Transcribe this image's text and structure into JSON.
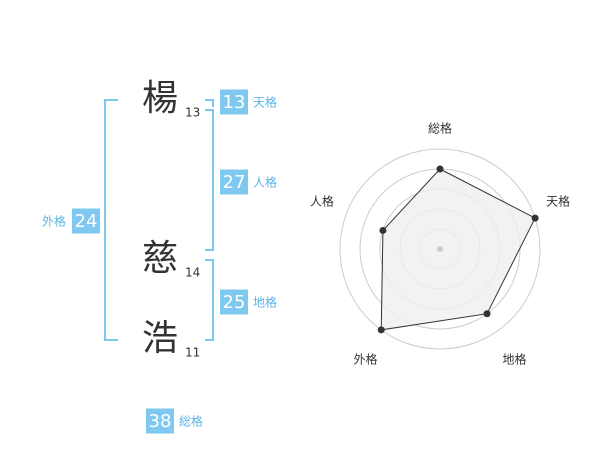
{
  "name": {
    "characters": [
      {
        "char": "楊",
        "strokes": 13
      },
      {
        "char": "慈",
        "strokes": 14
      },
      {
        "char": "浩",
        "strokes": 11
      }
    ]
  },
  "grades": [
    {
      "label": "天格",
      "value": 13
    },
    {
      "label": "人格",
      "value": 27
    },
    {
      "label": "地格",
      "value": 25
    },
    {
      "label": "外格",
      "value": 24
    },
    {
      "label": "総格",
      "value": 38
    }
  ],
  "chart_data": {
    "type": "radar",
    "categories": [
      "総格",
      "天格",
      "地格",
      "外格",
      "人格"
    ],
    "values": [
      4,
      5,
      4,
      5,
      3
    ],
    "rlim": [
      0,
      5
    ],
    "rticks": [
      1,
      2,
      3,
      4,
      5
    ],
    "color": "#333333",
    "fill": "#efefef"
  }
}
